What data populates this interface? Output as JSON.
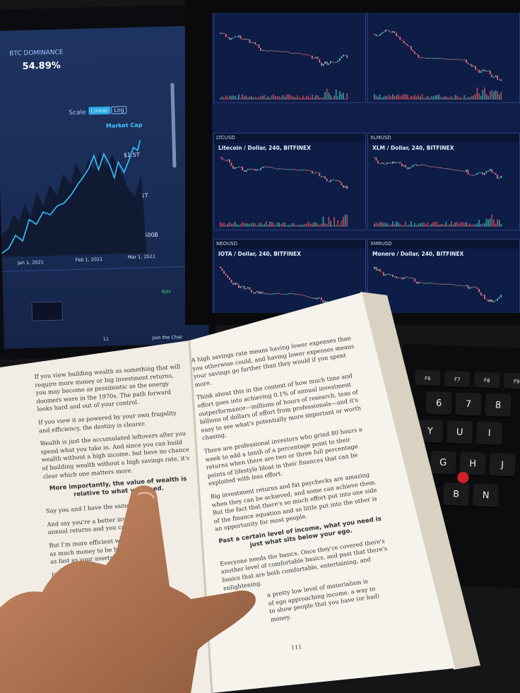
{
  "tablet": {
    "title": "BTC DOMINANCE",
    "value": "54.89%",
    "scale_label": "Scale",
    "scale_options": [
      "Linear",
      "Log"
    ],
    "series_label": "Market Cap",
    "price_labels": [
      "$1.5T",
      "$1T",
      "$500B"
    ],
    "date_labels": [
      "Jan 1, 2021",
      "Feb 1, 2021",
      "Mar 1, 2021"
    ],
    "bids_label": "Bids",
    "viewers": "11",
    "chat_label": "Join the Chat"
  },
  "monitor": {
    "panels": [
      {
        "symbol": "LTCUSD",
        "title": "Litecoin / Dollar, 240, BITFINEX"
      },
      {
        "symbol": "XLMUSD",
        "title": "XLM / Dollar, 240, BITFINEX"
      },
      {
        "symbol": "NEOUSD",
        "title": "IOTA / Dollar, 240, BITFINEX"
      },
      {
        "symbol": "XMRUSD",
        "title": "Monero / Dollar, 240, BITFINEX"
      }
    ]
  },
  "book": {
    "left_page": {
      "paragraphs": [
        "If you view building wealth as something that will require more money or big investment returns, you may become as pessimistic as the energy doomers were in the 1970s. The path forward looks hard and out of your control.",
        "If you view it as powered by your own frugality and efficiency, the destiny is clearer.",
        "Wealth is just the accumulated leftovers after you spend what you take in. And since you can build wealth without a high income, but have no chance of building wealth without a high savings rate, it's clear which one matters more."
      ],
      "heading": "More importantly, the value of wealth is relative to what you need.",
      "fragments": [
        "Say you and I have the same net wor",
        "And say you're a better investor than",
        "annual returns and you can earn 12%",
        "But I'm more efficient with my",
        "as much money to be happ",
        "as fast as your assets.",
        "I'm better"
      ]
    },
    "right_page": {
      "paragraphs": [
        "A high savings rate means having lower expenses than you otherwise could, and having lower expenses means your savings go farther than they would if you spent more.",
        "Think about this in the context of how much time and effort goes into achieving 0.1% of annual investment outperformance—millions of hours of research, tens of billions of dollars of effort from professionals—and it's easy to see what's potentially more important or worth chasing.",
        "There are professional investors who grind 80 hours a week to add a tenth of a percentage point to their returns when there are two or three full percentage points of lifestyle bloat in their finances that can be exploited with less effort.",
        "Big investment returns and fat paychecks are amazing when they can be achieved, and some can achieve them. But the fact that there's so much effort put into one side of the finance equation and so little put into the other is an opportunity for most people."
      ],
      "heading": "Past a certain level of income, what you need is just what sits below your ego.",
      "paragraphs_after": [
        "Everyone needs the basics. Once they're covered there's another level of comfortable basics, and past that there's basics that are both comfortable, entertaining, and enlightening.",
        "a pretty low level of materialism is",
        "of ego approaching income, a way to",
        "to show people that you have (or had) money."
      ]
    },
    "page_number": "111"
  },
  "keyboard": {
    "keys": [
      "F6",
      "F7",
      "F8",
      "F9",
      "6",
      "7",
      "8",
      "Y",
      "U",
      "I",
      "G",
      "H",
      "J",
      "B",
      "N"
    ]
  }
}
